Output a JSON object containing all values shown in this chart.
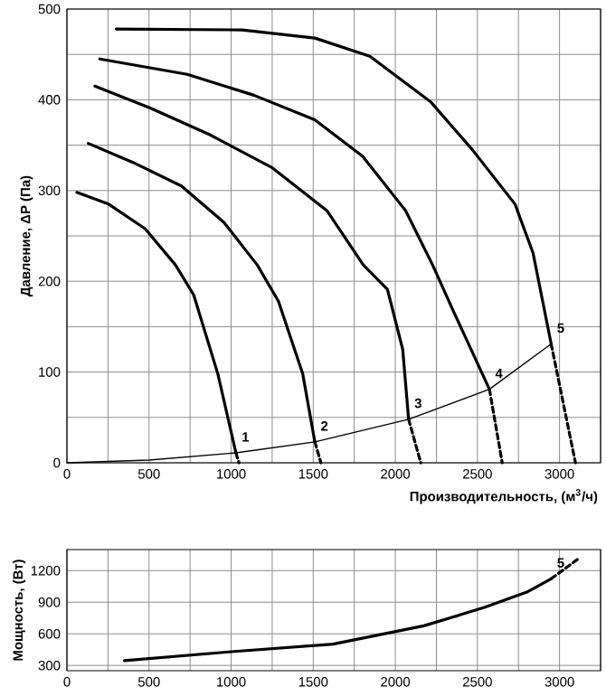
{
  "chart_data": [
    {
      "type": "line",
      "xlabel": "Производительность, (м$^{3}$/ч)",
      "ylabel": "Давление, ΔP (Па)",
      "xlim": [
        0,
        3250
      ],
      "ylim": [
        0,
        500
      ],
      "grid": true,
      "xticks": [
        0,
        {
          "value": 250,
          "label": null
        },
        500,
        {
          "value": 750,
          "label": null
        },
        1000,
        {
          "value": 1250,
          "label": null
        },
        1500,
        {
          "value": 1750,
          "label": null
        },
        2000,
        {
          "value": 2250,
          "label": null
        },
        2500,
        {
          "value": 2750,
          "label": null
        },
        3000,
        {
          "value": 3250,
          "label": null
        }
      ],
      "yticks": [
        0,
        {
          "value": 50,
          "label": null
        },
        100,
        {
          "value": 150,
          "label": null
        },
        200,
        {
          "value": 250,
          "label": null
        },
        300,
        {
          "value": 350,
          "label": null
        },
        400,
        {
          "value": 450,
          "label": null
        },
        500
      ],
      "series": [
        {
          "name": "1",
          "color": "#000000",
          "x": [
            60,
            254,
            476,
            661,
            772,
            919,
            1029
          ],
          "values": [
            298,
            285,
            258,
            218,
            185,
            98,
            11
          ]
        },
        {
          "color": "#000000",
          "line_style": "dashed",
          "x": [
            1029,
            1048
          ],
          "values": [
            11,
            0
          ]
        },
        {
          "name": "2",
          "color": "#000000",
          "x": [
            130,
            402,
            697,
            956,
            1159,
            1288,
            1436,
            1510
          ],
          "values": [
            352,
            331,
            305,
            265,
            218,
            178,
            98,
            23
          ]
        },
        {
          "color": "#000000",
          "line_style": "dashed",
          "x": [
            1510,
            1547
          ],
          "values": [
            23,
            0
          ]
        },
        {
          "name": "3",
          "color": "#000000",
          "x": [
            170,
            507,
            876,
            1251,
            1583,
            1805,
            1952,
            2045,
            2081
          ],
          "values": [
            415,
            391,
            361,
            325,
            278,
            218,
            191,
            125,
            48
          ]
        },
        {
          "color": "#000000",
          "line_style": "dashed",
          "x": [
            2081,
            2155
          ],
          "values": [
            48,
            0
          ]
        },
        {
          "name": "4",
          "color": "#000000",
          "x": [
            200,
            733,
            1139,
            1509,
            1800,
            2062,
            2227,
            2359,
            2573
          ],
          "values": [
            445,
            428,
            405,
            378,
            338,
            278,
            218,
            165,
            81
          ]
        },
        {
          "color": "#000000",
          "line_style": "dashed",
          "x": [
            2573,
            2651
          ],
          "values": [
            81,
            0
          ]
        },
        {
          "name": "5",
          "color": "#000000",
          "x": [
            300,
            1066,
            1510,
            1845,
            2214,
            2469,
            2729,
            2839,
            2949
          ],
          "values": [
            478,
            477,
            468,
            448,
            398,
            345,
            285,
            231,
            131
          ]
        },
        {
          "color": "#000000",
          "line_style": "dashed",
          "x": [
            2949,
            3097
          ],
          "values": [
            131,
            0
          ]
        },
        {
          "color": "#000000",
          "x": [
            0,
            500,
            1029,
            1510,
            2081,
            2573,
            2949
          ],
          "values": [
            0,
            3,
            11,
            23,
            48,
            81,
            131
          ]
        }
      ]
    },
    {
      "type": "line",
      "ylabel": "Мощность, (Вт)",
      "xlim": [
        0,
        3250
      ],
      "ylim": [
        250,
        1400
      ],
      "grid": true,
      "xticks": [
        0,
        {
          "value": 250,
          "label": null
        },
        500,
        {
          "value": 750,
          "label": null
        },
        1000,
        {
          "value": 1250,
          "label": null
        },
        1500,
        {
          "value": 1750,
          "label": null
        },
        2000,
        {
          "value": 2250,
          "label": null
        },
        2500,
        {
          "value": 2750,
          "label": null
        },
        3000,
        {
          "value": 3250,
          "label": null
        }
      ],
      "yticks": [
        300,
        600,
        900,
        1200
      ],
      "series": [
        {
          "name": "5",
          "color": "#000000",
          "x": [
            350,
            1000,
            1620,
            2173,
            2542,
            2801,
            2949
          ],
          "values": [
            345,
            430,
            502,
            676,
            850,
            996,
            1123
          ]
        },
        {
          "color": "#000000",
          "line_style": "dashed",
          "x": [
            2949,
            3116
          ],
          "values": [
            1123,
            1314
          ]
        }
      ]
    }
  ]
}
